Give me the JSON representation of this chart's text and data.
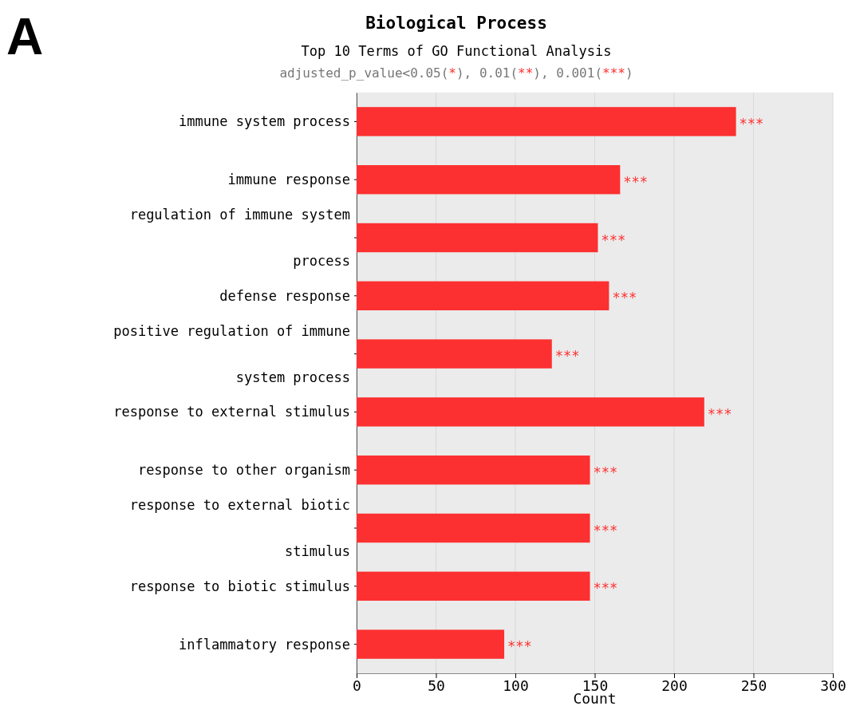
{
  "chart_data": {
    "type": "bar",
    "orientation": "horizontal",
    "title": "Biological Process",
    "subtitle": "Top 10 Terms of GO Functional Analysis",
    "annotations": [
      "A",
      "adjusted_p_value<0.05(*), 0.01(**), 0.001(***)"
    ],
    "categories": [
      "immune system process",
      "immune response",
      "regulation of immune system process",
      "defense response",
      "positive regulation of immune system process",
      "response to external stimulus",
      "response to other organism",
      "response to external biotic stimulus",
      "response to biotic stimulus",
      "inflammatory response"
    ],
    "series": [
      {
        "color": "#fc3030",
        "values": [
          239,
          166,
          152,
          159,
          123,
          219,
          147,
          147,
          147,
          93
        ],
        "value_labels": [
          "***",
          "***",
          "***",
          "***",
          "***",
          "***",
          "***",
          "***",
          "***",
          "***"
        ]
      }
    ],
    "xlabel": "Count",
    "xlim": [
      0,
      300
    ],
    "xticks": [
      0,
      50,
      100,
      150,
      200,
      250,
      300
    ],
    "grid": "x"
  }
}
